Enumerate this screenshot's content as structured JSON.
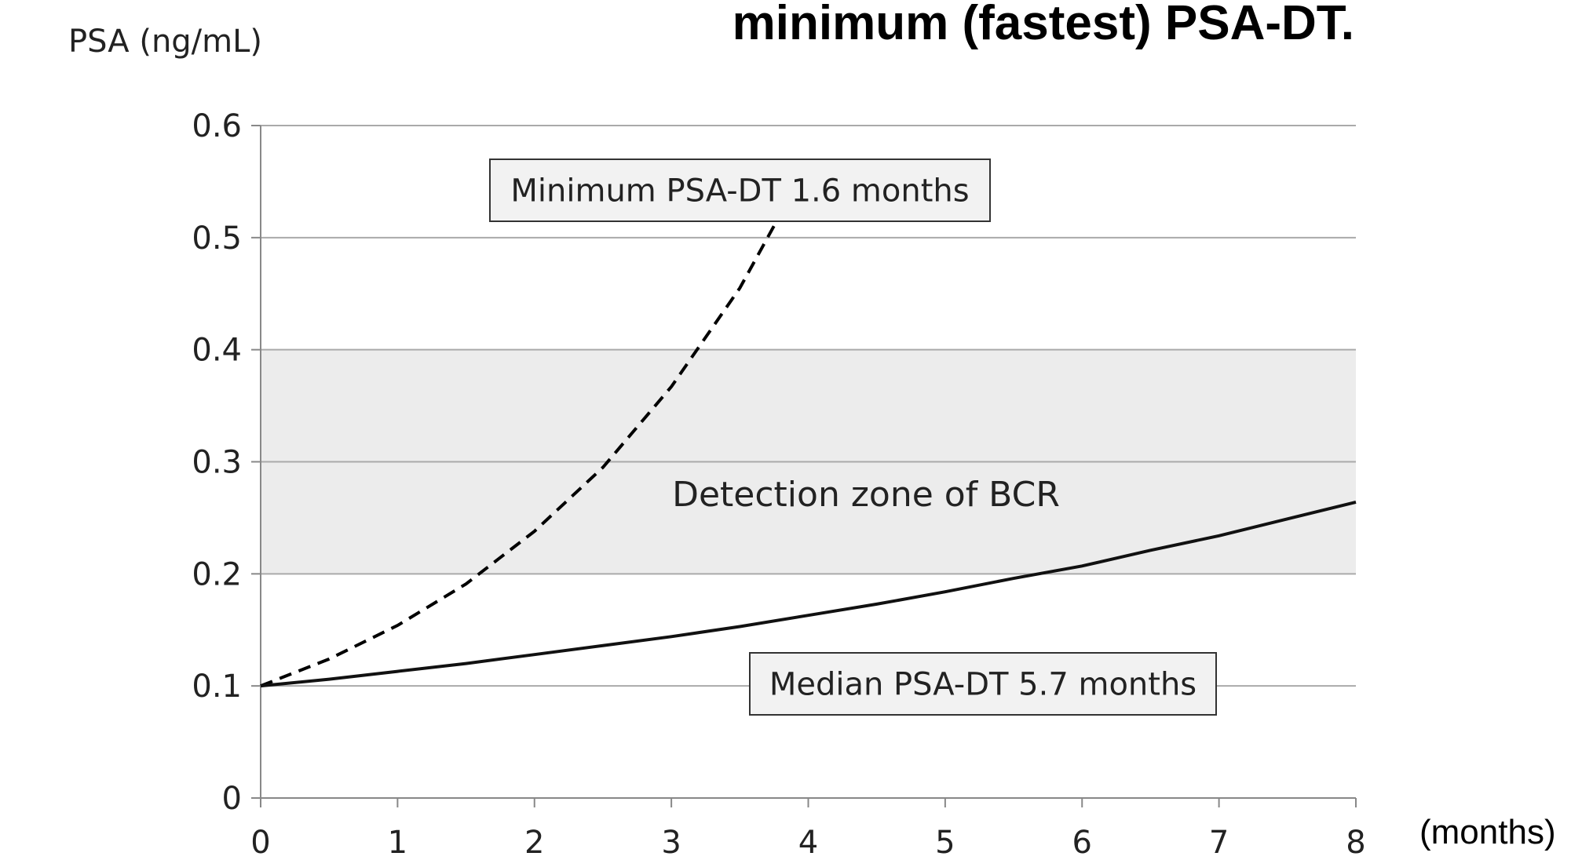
{
  "chart_data": {
    "type": "line",
    "title": "minimum (fastest) PSA-DT.",
    "y_label": "PSA (ng/mL)",
    "x_label": "(months)",
    "x": [
      0,
      0.5,
      1,
      1.5,
      2,
      2.5,
      3,
      3.5,
      4,
      4.5,
      5,
      5.5,
      6,
      6.5,
      7,
      7.5,
      8
    ],
    "series": [
      {
        "name": "Minimum PSA-DT 1.6 months",
        "color": "#000000",
        "dashed": true,
        "values": [
          0.1,
          0.124,
          0.154,
          0.191,
          0.238,
          0.295,
          0.367,
          0.455,
          0.566,
          null,
          null,
          null,
          null,
          null,
          null,
          null,
          null
        ]
      },
      {
        "name": "Median PSA-DT 5.7 months",
        "color": "#111111",
        "dashed": false,
        "values": [
          0.1,
          0.106,
          0.113,
          0.12,
          0.128,
          0.136,
          0.144,
          0.153,
          0.163,
          0.173,
          0.184,
          0.196,
          0.207,
          0.221,
          0.234,
          0.249,
          0.264
        ]
      }
    ],
    "band": {
      "from": 0.2,
      "to": 0.4,
      "color": "#ececec",
      "label": "Detection zone of BCR"
    },
    "xlim": [
      0,
      8
    ],
    "xticks": [
      0,
      1,
      2,
      3,
      4,
      5,
      6,
      7,
      8
    ],
    "ylim": [
      0,
      0.6
    ],
    "yticks": [
      0,
      0.1,
      0.2,
      0.3,
      0.4,
      0.5,
      0.6
    ],
    "grid": true
  }
}
